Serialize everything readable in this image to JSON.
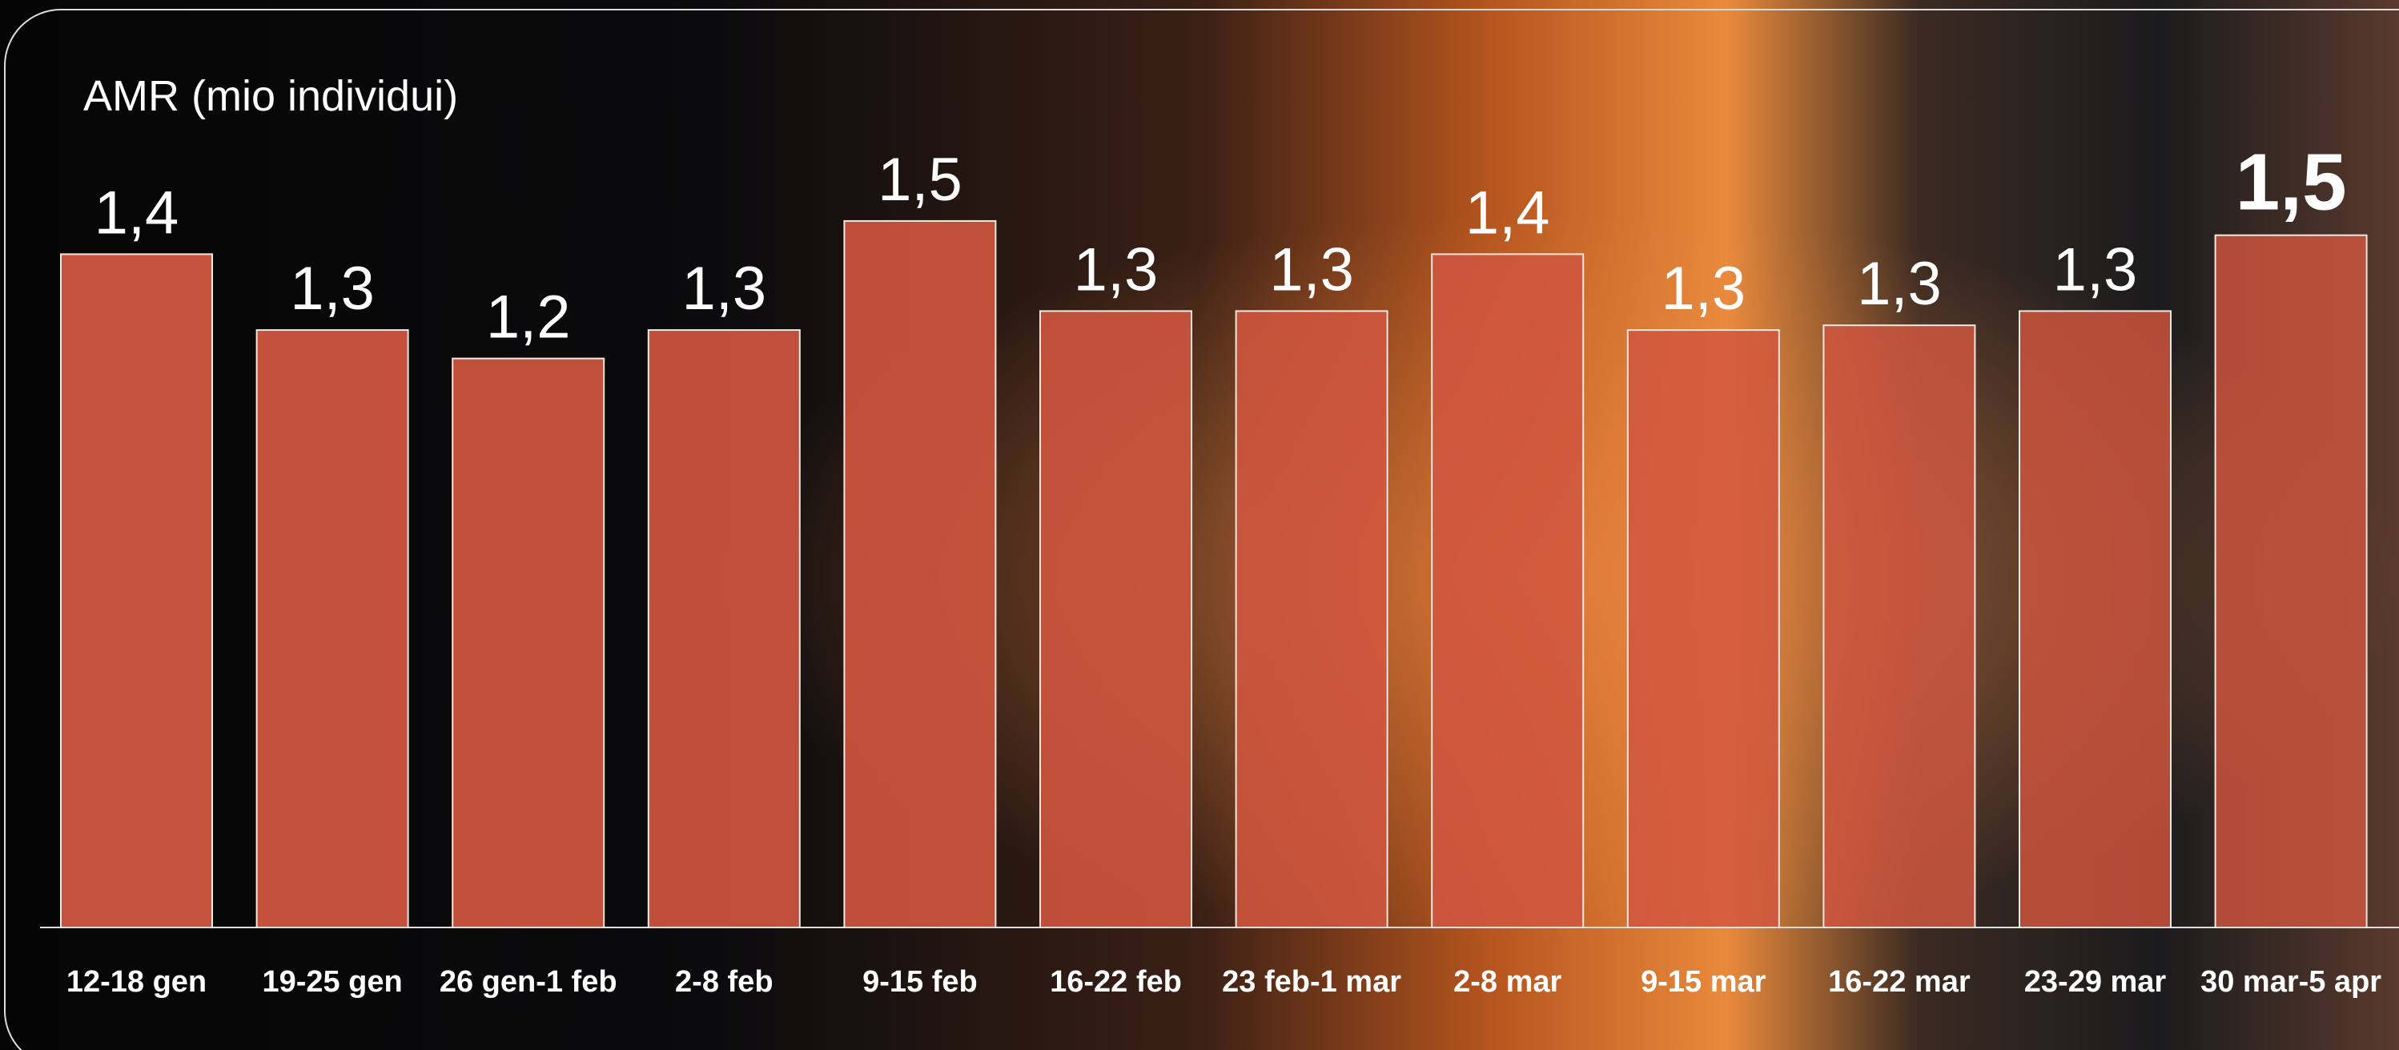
{
  "chart_data": {
    "type": "bar",
    "title": "AMR (mio individui)",
    "categories": [
      "12-18 gen",
      "19-25 gen",
      "26 gen-1 feb",
      "2-8 feb",
      "9-15 feb",
      "16-22 feb",
      "23 feb-1 mar",
      "2-8 mar",
      "9-15 mar",
      "16-22 mar",
      "23-29 mar",
      "30 mar-5 apr"
    ],
    "values": [
      1.42,
      1.26,
      1.2,
      1.26,
      1.49,
      1.3,
      1.3,
      1.42,
      1.26,
      1.27,
      1.3,
      1.46
    ],
    "value_labels": [
      "1,4",
      "1,3",
      "1,2",
      "1,3",
      "1,5",
      "1,3",
      "1,3",
      "1,4",
      "1,3",
      "1,3",
      "1,3",
      "1,5"
    ],
    "emphasized": [
      false,
      false,
      false,
      false,
      false,
      false,
      false,
      false,
      false,
      false,
      false,
      true
    ],
    "color": "#d0563f"
  }
}
